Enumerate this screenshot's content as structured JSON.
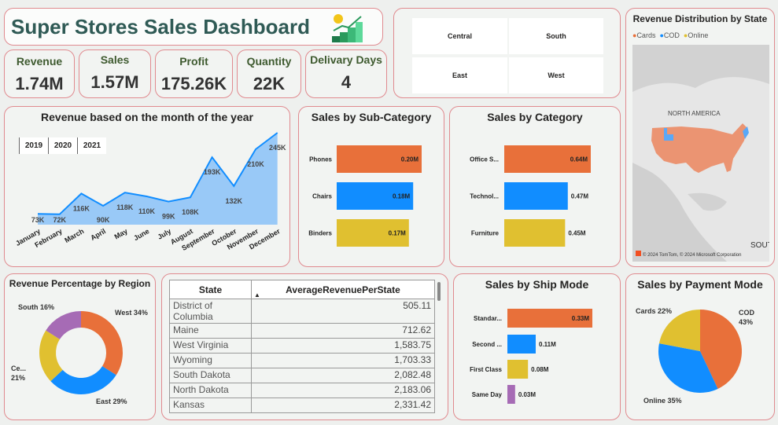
{
  "header": {
    "title": "Super Stores Sales Dashboard",
    "logo_icon": "growth-chart-coin-icon"
  },
  "kpis": [
    {
      "label": "Revenue",
      "value": "1.74M"
    },
    {
      "label": "Sales",
      "value": "1.57M"
    },
    {
      "label": "Profit",
      "value": "175.26K"
    },
    {
      "label": "Quantity",
      "value": "22K"
    },
    {
      "label": "Delivary Days",
      "value": "4"
    }
  ],
  "region_slicer": [
    "Central",
    "South",
    "East",
    "West"
  ],
  "map": {
    "title": "Revenue Distribution by State",
    "legend": [
      {
        "name": "Cards",
        "color": "#E8703A"
      },
      {
        "name": "COD",
        "color": "#118DFF"
      },
      {
        "name": "Online",
        "color": "#E0C030"
      }
    ],
    "label": "NORTH AMERICA",
    "attribution": "© 2024 TomTom, © 2024 Microsoft Corporation",
    "edge_label": "SOUT"
  },
  "year_slicer": [
    "2019",
    "2020",
    "2021"
  ],
  "table": {
    "headers": [
      "State",
      "AverageRevenuePerState"
    ],
    "sort": "ascending",
    "rows": [
      [
        "District of Columbia",
        "505.11"
      ],
      [
        "Maine",
        "712.62"
      ],
      [
        "West Virginia",
        "1,583.75"
      ],
      [
        "Wyoming",
        "1,703.33"
      ],
      [
        "South Dakota",
        "2,082.48"
      ],
      [
        "North Dakota",
        "2,183.06"
      ],
      [
        "Kansas",
        "2,331.42"
      ]
    ]
  },
  "chart_data": [
    {
      "id": "monthly",
      "type": "area",
      "title": "Revenue based on the month of the year",
      "categories": [
        "January",
        "February",
        "March",
        "April",
        "May",
        "June",
        "July",
        "August",
        "September",
        "October",
        "November",
        "December"
      ],
      "values": [
        73,
        72,
        116,
        90,
        118,
        110,
        99,
        108,
        193,
        132,
        210,
        245
      ],
      "labels": [
        "73K",
        "72K",
        "116K",
        "90K",
        "118K",
        "110K",
        "99K",
        "108K",
        "193K",
        "132K",
        "210K",
        "245K"
      ],
      "color": "#118DFF",
      "grid": false
    },
    {
      "id": "subcat",
      "type": "bar",
      "title": "Sales by Sub-Category",
      "categories": [
        "Phones",
        "Chairs",
        "Binders"
      ],
      "values": [
        0.2,
        0.18,
        0.17
      ],
      "labels": [
        "0.20M",
        "0.18M",
        "0.17M"
      ],
      "colors": [
        "#E8703A",
        "#118DFF",
        "#E0C030"
      ]
    },
    {
      "id": "cat",
      "type": "bar",
      "title": "Sales by Category",
      "categories": [
        "Office S...",
        "Technol...",
        "Furniture"
      ],
      "values": [
        0.64,
        0.47,
        0.45
      ],
      "labels": [
        "0.64M",
        "0.47M",
        "0.45M"
      ],
      "colors": [
        "#E8703A",
        "#118DFF",
        "#E0C030"
      ]
    },
    {
      "id": "ship",
      "type": "bar",
      "title": "Sales by Ship Mode",
      "categories": [
        "Standar...",
        "Second ...",
        "First Class",
        "Same Day"
      ],
      "values": [
        0.33,
        0.11,
        0.08,
        0.03
      ],
      "labels": [
        "0.33M",
        "0.11M",
        "0.08M",
        "0.03M"
      ],
      "colors": [
        "#E8703A",
        "#118DFF",
        "#E0C030",
        "#A66BB5"
      ]
    },
    {
      "id": "region",
      "type": "pie",
      "donut": true,
      "title": "Revenue Percentage by Region",
      "categories": [
        "West",
        "East",
        "Ce...",
        "South"
      ],
      "values": [
        34,
        29,
        21,
        16
      ],
      "labels": [
        "West 34%",
        "East 29%",
        "Ce... 21%",
        "South 16%"
      ],
      "colors": [
        "#E8703A",
        "#118DFF",
        "#E0C030",
        "#A66BB5"
      ]
    },
    {
      "id": "payment",
      "type": "pie",
      "title": "Sales by Payment Mode",
      "categories": [
        "COD",
        "Online",
        "Cards"
      ],
      "values": [
        43,
        35,
        22
      ],
      "labels": [
        "COD 43%",
        "Online 35%",
        "Cards 22%"
      ],
      "colors": [
        "#E8703A",
        "#118DFF",
        "#E0C030"
      ]
    }
  ]
}
